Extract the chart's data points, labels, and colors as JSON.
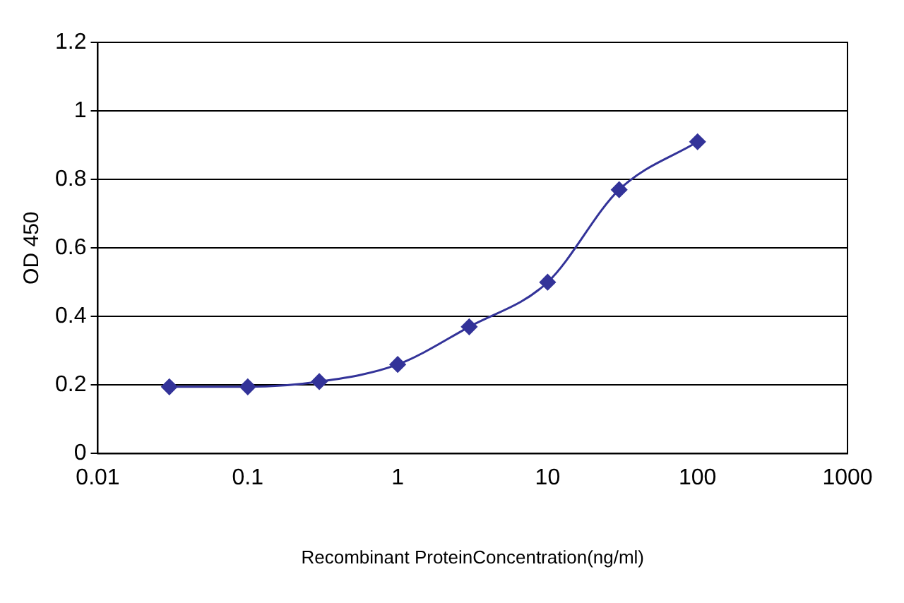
{
  "chart_data": {
    "type": "line",
    "xlabel": "Recombinant ProteinConcentration(ng/ml)",
    "ylabel": "OD 450",
    "x": [
      0.03,
      0.1,
      0.3,
      1,
      3,
      10,
      30,
      100
    ],
    "series": [
      {
        "color": "#333399",
        "values": [
          0.195,
          0.195,
          0.21,
          0.26,
          0.37,
          0.5,
          0.77,
          0.91
        ]
      }
    ],
    "log": "x",
    "xlim": [
      0.01,
      1000
    ],
    "xticks": [
      0.01,
      0.1,
      1,
      10,
      100,
      1000
    ],
    "ylim": [
      0,
      1.2
    ],
    "yticks": [
      0,
      0.2,
      0.4,
      0.6,
      0.8,
      1,
      1.2
    ],
    "grid": "y",
    "legend": false,
    "marker": "diamond",
    "line_style": "solid"
  }
}
